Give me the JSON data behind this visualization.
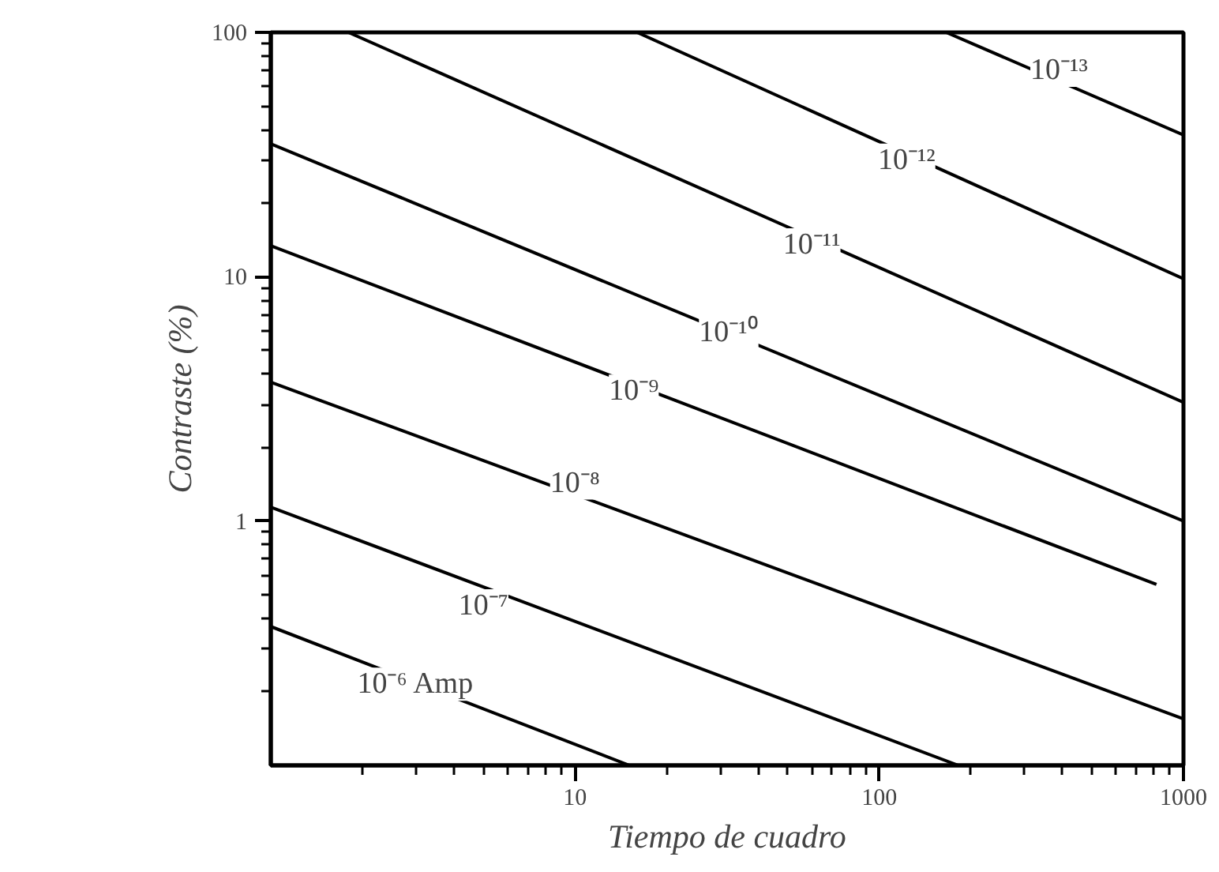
{
  "chart_data": {
    "type": "line",
    "xlabel": "Tiempo de cuadro",
    "ylabel": "Contraste (%)",
    "log": "xy",
    "grid": false,
    "marker": "none",
    "line_style": "solid",
    "xlim": [
      1,
      1000
    ],
    "ylim": [
      0.1,
      100
    ],
    "xticks": [
      10,
      100,
      1000
    ],
    "yticks": [
      1,
      10,
      100
    ],
    "series": [
      {
        "color": "#000000",
        "x": [
          1,
          15.1
        ],
        "values": [
          0.37,
          0.1
        ]
      },
      {
        "color": "#000000",
        "x": [
          1,
          182
        ],
        "values": [
          1.14,
          0.1
        ]
      },
      {
        "color": "#000000",
        "x": [
          1,
          1000
        ],
        "values": [
          3.7,
          0.155
        ]
      },
      {
        "color": "#000000",
        "x": [
          1,
          815
        ],
        "values": [
          13.4,
          0.55
        ]
      },
      {
        "color": "#000000",
        "x": [
          1,
          1000
        ],
        "values": [
          35,
          1.0
        ]
      },
      {
        "color": "#000000",
        "x": [
          1.8,
          1000
        ],
        "values": [
          100,
          3.06
        ]
      },
      {
        "color": "#000000",
        "x": [
          16,
          1000
        ],
        "values": [
          100,
          9.8
        ]
      },
      {
        "color": "#000000",
        "x": [
          166,
          1000
        ],
        "values": [
          100,
          38
        ]
      }
    ],
    "annotations": [
      {
        "text": "10⁻⁶ Amp",
        "x": 3.0,
        "y": 0.215
      },
      {
        "text": "10⁻⁷",
        "x": 5.0,
        "y": 0.45
      },
      {
        "text": "10⁻⁸",
        "x": 10,
        "y": 1.43
      },
      {
        "text": "10⁻⁹",
        "x": 15.6,
        "y": 3.4
      },
      {
        "text": "10⁻¹⁰",
        "x": 32,
        "y": 5.9
      },
      {
        "text": "10⁻¹¹",
        "x": 60,
        "y": 13.5
      },
      {
        "text": "10⁻¹²",
        "x": 123,
        "y": 30
      },
      {
        "text": "10⁻¹³",
        "x": 390,
        "y": 70
      }
    ]
  }
}
